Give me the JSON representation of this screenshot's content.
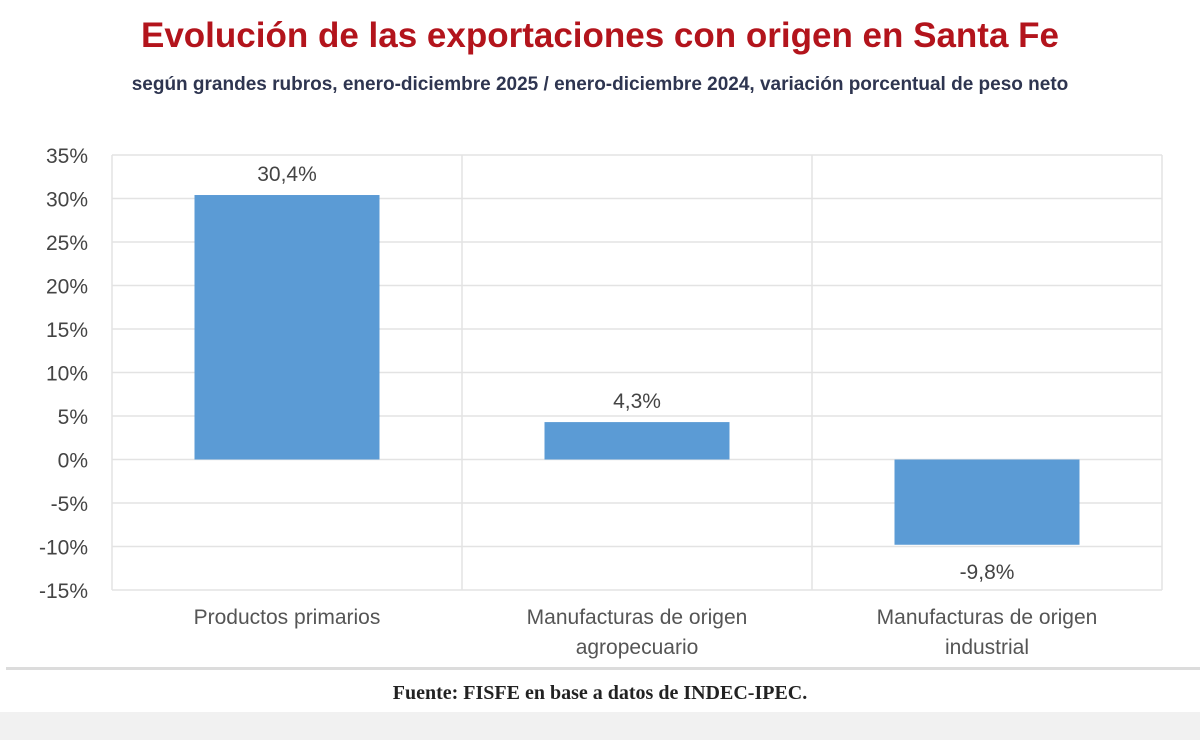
{
  "title": "Evolución de las exportaciones con origen en Santa Fe",
  "subtitle": "según grandes rubros, enero-diciembre 2025 / enero-diciembre 2024, variación porcentual de peso neto",
  "source": "Fuente: FISFE en base a datos de INDEC-IPEC.",
  "chart_data": {
    "type": "bar",
    "categories": [
      [
        "Productos primarios"
      ],
      [
        "Manufacturas de origen",
        "agropecuario"
      ],
      [
        "Manufacturas de origen",
        "industrial"
      ]
    ],
    "values": [
      30.4,
      4.3,
      -9.8
    ],
    "data_labels": [
      "30,4%",
      "4,3%",
      "-9,8%"
    ],
    "ylim": [
      -15,
      35
    ],
    "yticks": [
      35,
      30,
      25,
      20,
      15,
      10,
      5,
      0,
      -5,
      -10,
      -15
    ],
    "ytick_labels": [
      "35%",
      "30%",
      "25%",
      "20%",
      "15%",
      "10%",
      "5%",
      "0%",
      "-5%",
      "-10%",
      "-15%"
    ],
    "grid": true,
    "bar_color": "#5b9bd5"
  }
}
